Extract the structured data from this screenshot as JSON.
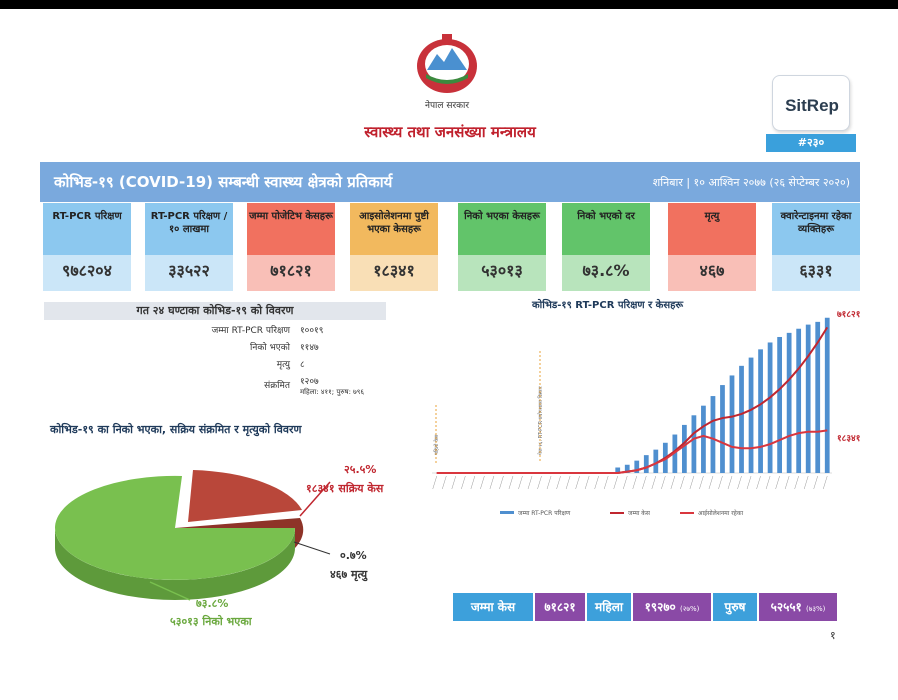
{
  "header": {
    "gov_label": "नेपाल सरकार",
    "ministry": "स्वास्थ्य तथा जनसंख्या मन्त्रालय",
    "sitrep_label": "SitRep",
    "sitrep_number": "#२३०",
    "banner_title": "कोभिड-१९ (COVID-19) सम्बन्धी स्वास्थ्य क्षेत्रको प्रतिकार्य",
    "banner_date": "शनिबार | १० आश्विन २०७७ (२६ सेप्टेम्बर २०२०)"
  },
  "colors": {
    "banner": "#7aa9dd",
    "cards": [
      "#8cc8ef",
      "#8cc8ef",
      "#f1715f",
      "#f2b95e",
      "#62c46a",
      "#62c46a",
      "#f1715f",
      "#8cc8ef"
    ],
    "pie_recovered": "#79c04f",
    "pie_active": "#b9473a",
    "bar": "#4f8fcf",
    "line_cases": "#c0262f",
    "line_isolation": "#d9363e",
    "bottom_total": "#3da0db",
    "bottom_count": "#8a4aa6"
  },
  "cards": [
    {
      "label": "RT-PCR परिक्षण",
      "value": "९७८२०४"
    },
    {
      "label": "RT-PCR परिक्षण /१० लाखमा",
      "value": "३३५२२"
    },
    {
      "label": "जम्मा पोजेटिभ केसहरू",
      "value": "७१८२१"
    },
    {
      "label": "आइसोलेशनमा पुष्टी भएका केसहरू",
      "value": "१८३४१"
    },
    {
      "label": "निको भएका केसहरू",
      "value": "५३०१३"
    },
    {
      "label": "निको भएको दर",
      "value": "७३.८%"
    },
    {
      "label": "मृत्यु",
      "value": "४६७"
    },
    {
      "label": "क्वारेन्टाइनमा रहेका व्यक्तिहरू",
      "value": "६३३१"
    }
  ],
  "last24": {
    "title": "गत २४ घण्टाका कोभिड-१९ को विवरण",
    "rows": [
      {
        "label": "जम्मा RT-PCR परिक्षण",
        "value": "१००१९"
      },
      {
        "label": "निको भएको",
        "value": "११४७"
      },
      {
        "label": "मृत्यु",
        "value": "८"
      },
      {
        "label": "संक्रमित",
        "value": "१२०७"
      }
    ],
    "infected_split": "महिला: ४११; पुरुष: ७९६"
  },
  "pie": {
    "title": "कोभिड-१९ का निको भएका, सक्रिय संक्रमित र मृत्युको विवरण",
    "slices": [
      {
        "percent_label": "७३.८%",
        "value_label": "५३०१३ निको भएका",
        "value": 53013
      },
      {
        "percent_label": "२५.५%",
        "value_label": "१८३४१ सक्रिय केस",
        "value": 18341
      },
      {
        "percent_label": "०.७%",
        "value_label": "४६७ मृत्यु",
        "value": 467
      }
    ]
  },
  "chart_data": {
    "type": "line",
    "title": "कोभिड-१९ RT-PCR परिक्षण र केसहरू",
    "annotations": [
      "पहिलो केस",
      "पेज १६: RT-PCR प्रयोगशाला विस्तार"
    ],
    "end_labels": {
      "cases": "७१८२१",
      "isolation": "१८३४१"
    },
    "legend": [
      "जम्मा RT-PCR परिक्षण",
      "जम्मा केस",
      "आईसोलेशनमा रहेका"
    ],
    "legend_position": "bottom",
    "series": [
      {
        "name": "जम्मा RT-PCR परिक्षण",
        "kind": "bar",
        "values": [
          0,
          0,
          0,
          0,
          0,
          0,
          0,
          0,
          0,
          0,
          0,
          0,
          0,
          0,
          0,
          0,
          0,
          0,
          0,
          0.4,
          0.6,
          0.9,
          1.3,
          1.7,
          2.2,
          2.8,
          3.5,
          4.2,
          4.9,
          5.6,
          6.4,
          7.1,
          7.8,
          8.4,
          9.0,
          9.5,
          9.9,
          10.2,
          10.5,
          10.8,
          11.0,
          11.3
        ]
      },
      {
        "name": "जम्मा केस",
        "kind": "line",
        "values": [
          0,
          0,
          0,
          0,
          0,
          0,
          0,
          0,
          0,
          0,
          0,
          0,
          0,
          0,
          0,
          0,
          0,
          0,
          0,
          0,
          0.1,
          0.2,
          0.4,
          0.7,
          1.1,
          1.6,
          2.2,
          2.9,
          3.4,
          3.8,
          4.0,
          4.1,
          4.3,
          4.6,
          5.0,
          5.5,
          6.1,
          6.8,
          7.6,
          8.5,
          9.5,
          10.6
        ]
      },
      {
        "name": "आईसोलेशनमा रहेका",
        "kind": "line",
        "values": [
          0,
          0,
          0,
          0,
          0,
          0,
          0,
          0,
          0,
          0,
          0,
          0,
          0,
          0,
          0,
          0,
          0,
          0,
          0,
          0,
          0.1,
          0.2,
          0.4,
          0.7,
          1.0,
          1.5,
          2.0,
          2.5,
          2.7,
          2.5,
          2.2,
          1.9,
          1.8,
          1.8,
          1.9,
          2.1,
          2.4,
          2.7,
          2.9,
          3.0,
          3.0,
          3.1
        ]
      }
    ]
  },
  "bottom": [
    {
      "label": "जम्मा केस",
      "value": "७१८२१"
    },
    {
      "label": "महिला",
      "value": "१९२७०",
      "sub": "(२७%)"
    },
    {
      "label": "पुरुष",
      "value": "५२५५१",
      "sub": "(७३%)"
    }
  ],
  "page_number": "१"
}
